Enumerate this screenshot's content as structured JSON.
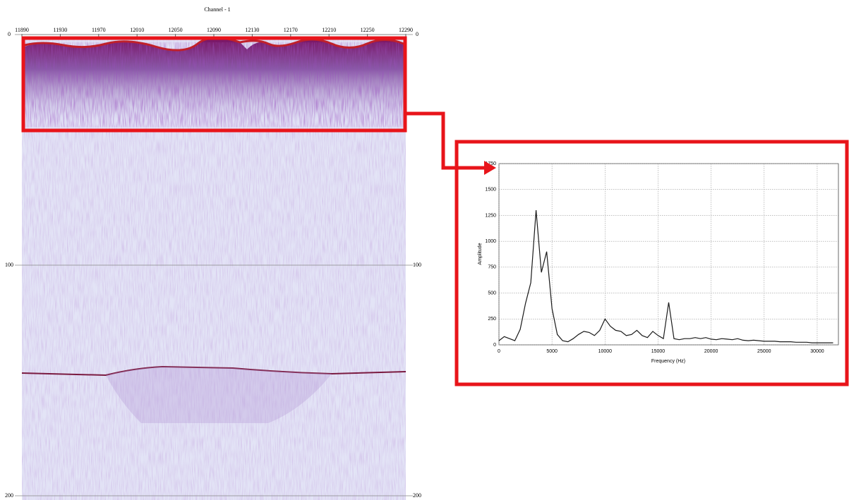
{
  "chart_data": [
    {
      "type": "seismic",
      "title": "Channel - 1",
      "xlim": [
        11890,
        12290
      ],
      "xticks": [
        11890,
        11930,
        11970,
        12010,
        12050,
        12090,
        12130,
        12170,
        12210,
        12250,
        12290
      ],
      "ylim": [
        0,
        200
      ],
      "y_inverted": true,
      "yticks": [
        0,
        100,
        200
      ],
      "grid": true
    },
    {
      "type": "line",
      "xlabel": "Frequency (Hz)",
      "ylabel": "Amplitude",
      "x": [
        0,
        500,
        1000,
        1500,
        2000,
        2500,
        3000,
        3500,
        4000,
        4500,
        5000,
        5500,
        6000,
        6500,
        7000,
        7500,
        8000,
        8500,
        9000,
        9500,
        10000,
        10500,
        11000,
        11500,
        12000,
        12500,
        13000,
        13500,
        14000,
        14500,
        15000,
        15500,
        16000,
        16500,
        17000,
        17500,
        18000,
        18500,
        19000,
        19500,
        20000,
        20500,
        21000,
        21500,
        22000,
        22500,
        23000,
        23500,
        24000,
        24500,
        25000,
        25500,
        26000,
        26500,
        27000,
        27500,
        28000,
        28500,
        29000,
        29500,
        30000,
        30500,
        31000,
        31500
      ],
      "series": [
        {
          "color": "#1a1a1a",
          "values": [
            40,
            80,
            60,
            40,
            150,
            400,
            600,
            1300,
            700,
            900,
            350,
            100,
            40,
            30,
            60,
            100,
            130,
            120,
            90,
            140,
            250,
            180,
            140,
            130,
            90,
            100,
            140,
            90,
            70,
            130,
            90,
            60,
            410,
            60,
            50,
            60,
            60,
            70,
            60,
            70,
            55,
            50,
            60,
            55,
            50,
            60,
            45,
            40,
            45,
            40,
            35,
            35,
            35,
            30,
            30,
            30,
            25,
            25,
            25,
            20,
            20,
            20,
            20,
            20
          ]
        }
      ],
      "xlim": [
        0,
        32000
      ],
      "xticks": [
        0,
        5000,
        10000,
        15000,
        20000,
        25000,
        30000
      ],
      "ylim": [
        0,
        1750
      ],
      "yticks": [
        0,
        250,
        500,
        750,
        1000,
        1250,
        1500,
        1750
      ],
      "grid": true
    }
  ]
}
